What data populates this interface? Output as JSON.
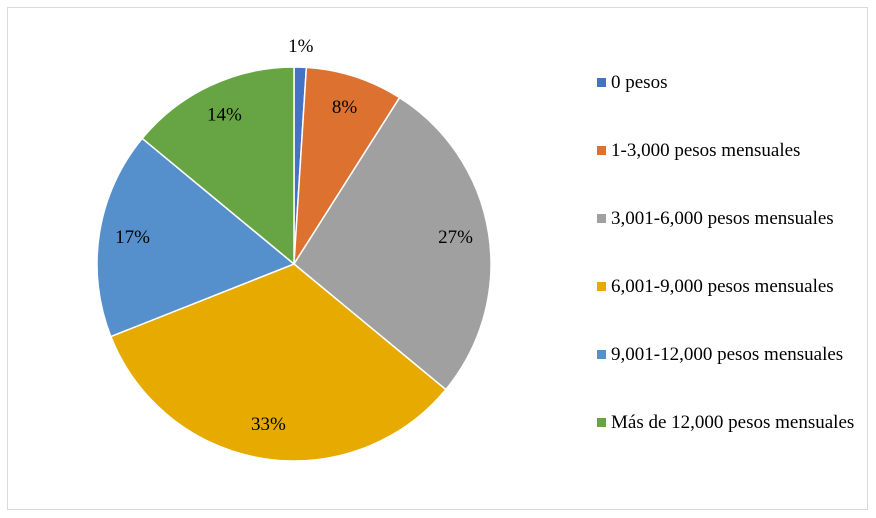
{
  "chart_data": {
    "type": "pie",
    "categories": [
      "0 pesos",
      "1-3,000 pesos mensuales",
      "3,001-6,000 pesos mensuales",
      "6,001-9,000 pesos mensuales",
      "9,001-12,000 pesos mensuales",
      "Más de 12,000 pesos mensuales"
    ],
    "values": [
      1,
      8,
      27,
      33,
      17,
      14
    ],
    "value_labels": [
      "1%",
      "8%",
      "27%",
      "33%",
      "17%",
      "14%"
    ],
    "colors": [
      "#4472c4",
      "#dd7130",
      "#a0a0a0",
      "#e6aa00",
      "#5590cc",
      "#67a544"
    ],
    "legend": "right"
  }
}
